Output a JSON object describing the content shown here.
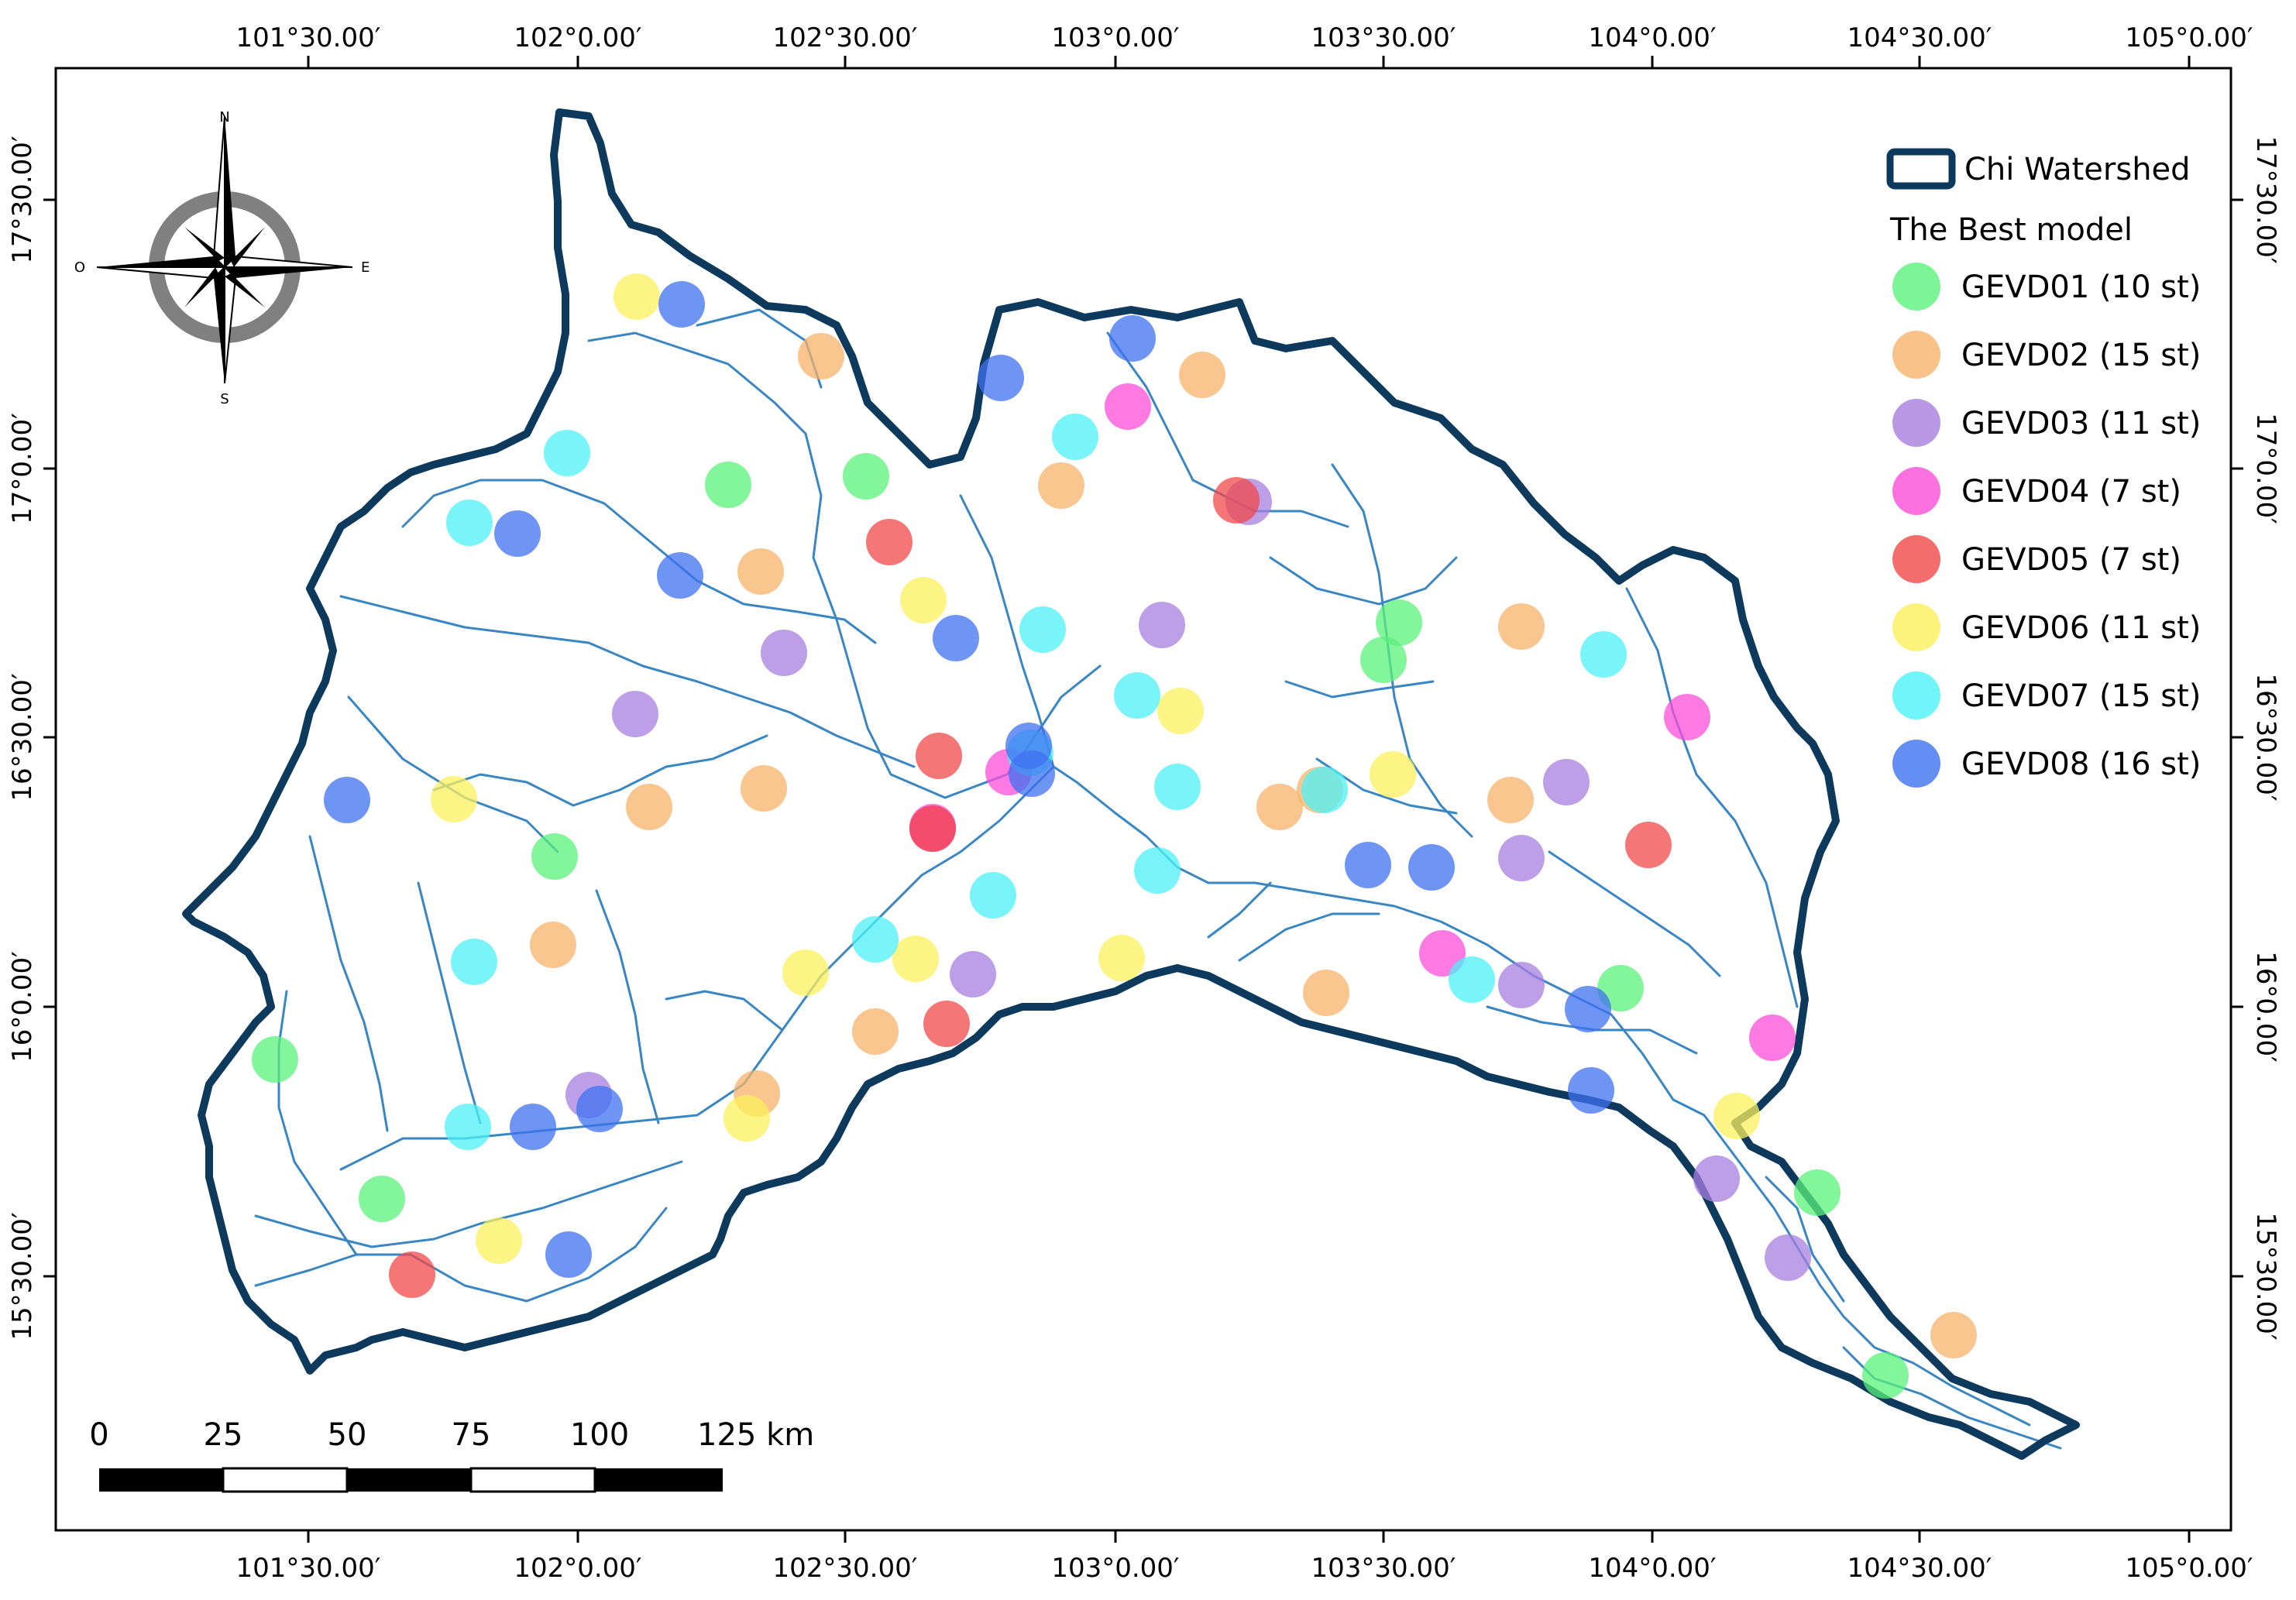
{
  "map": {
    "longitude_ticks": [
      "101°30.00′",
      "102°0.00′",
      "102°30.00′",
      "103°0.00′",
      "103°30.00′",
      "104°0.00′",
      "104°30.00′",
      "105°0.00′"
    ],
    "latitude_ticks": [
      "17°30.00′",
      "17°0.00′",
      "16°30.00′",
      "16°0.00′",
      "15°30.00′"
    ],
    "compass": {
      "north": "N",
      "south": "S",
      "east": "E",
      "west": "O"
    },
    "scale_bar": {
      "labels": [
        "0",
        "25",
        "50",
        "75",
        "100",
        "125 km"
      ]
    },
    "colors": {
      "boundary": "#0d3a5c",
      "river": "#3a86c2",
      "GEVD01": "#5af27a",
      "GEVD02": "#f8b36b",
      "GEVD03": "#a77fe0",
      "GEVD04": "#fb4ed8",
      "GEVD05": "#f04848",
      "GEVD06": "#fbf05b",
      "GEVD07": "#4cf2f7",
      "GEVD08": "#3f72f0"
    }
  },
  "legend": {
    "boundary_label": "Chi Watershed",
    "title": "The Best model",
    "items": [
      {
        "key": "GEVD01",
        "label": "GEVD01 (10 st)"
      },
      {
        "key": "GEVD02",
        "label": "GEVD02 (15 st)"
      },
      {
        "key": "GEVD03",
        "label": "GEVD03 (11 st)"
      },
      {
        "key": "GEVD04",
        "label": "GEVD04  (7 st)"
      },
      {
        "key": "GEVD05",
        "label": "GEVD05  (7 st)"
      },
      {
        "key": "GEVD06",
        "label": "GEVD06 (11 st)"
      },
      {
        "key": "GEVD07",
        "label": "GEVD07 (15 st)"
      },
      {
        "key": "GEVD08",
        "label": "GEVD08 (16 st)"
      }
    ]
  }
}
